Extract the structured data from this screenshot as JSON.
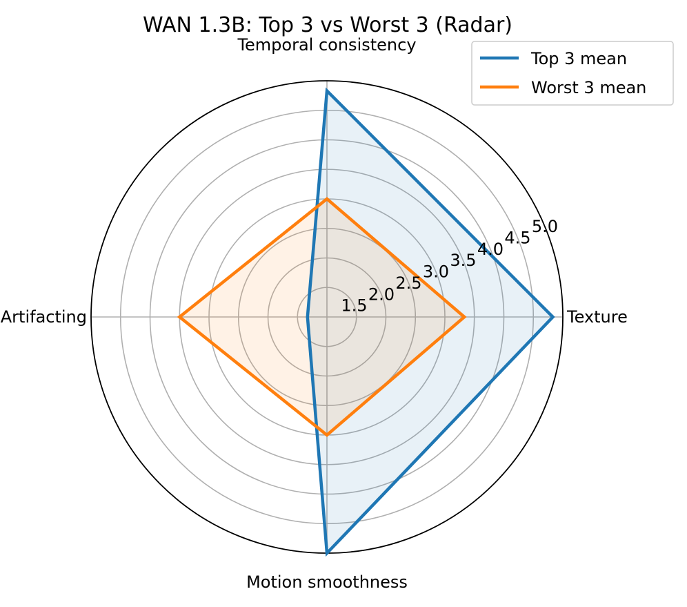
{
  "chart_data": {
    "type": "radar",
    "title": "WAN 1.3B: Top 3 vs Worst 3 (Radar)",
    "categories": [
      "Texture",
      "Temporal consistency",
      "Artifacting",
      "Motion smoothness"
    ],
    "series": [
      {
        "name": "Top 3 mean",
        "color": "#1f77b4",
        "values": [
          4.83,
          4.83,
          1.33,
          5.0
        ]
      },
      {
        "name": "Worst 3 mean",
        "color": "#ff7f0e",
        "values": [
          3.33,
          3.0,
          3.5,
          3.0
        ]
      }
    ],
    "rlim": [
      1.0,
      5.0
    ],
    "rticks": [
      "1.5",
      "2.0",
      "2.5",
      "3.0",
      "3.5",
      "4.0",
      "4.5",
      "5.0"
    ],
    "grid": true,
    "legend_placement": "top-right"
  }
}
